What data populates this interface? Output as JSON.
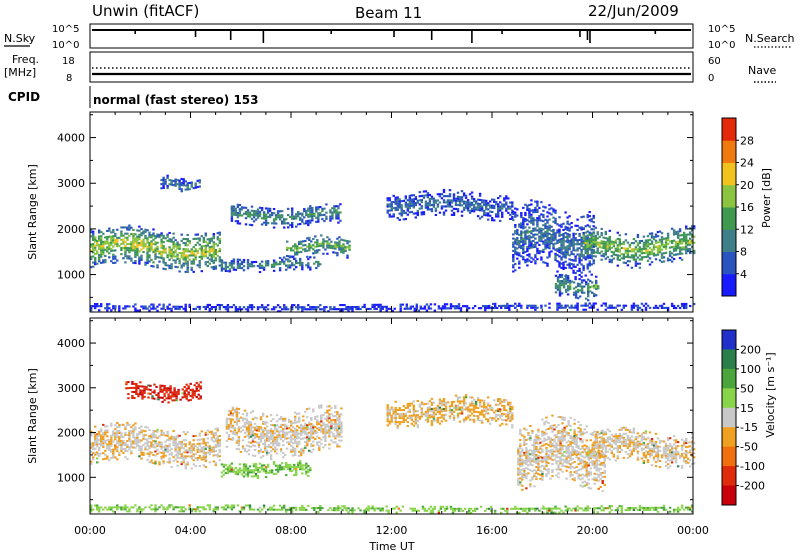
{
  "header": {
    "station": "Unwin (fitACF)",
    "beam": "Beam 11",
    "date": "22/Jun/2009"
  },
  "strips": {
    "nsky_label": "N.Sky",
    "nsky_ticks": [
      "10^5",
      "10^0"
    ],
    "nsearch_label": "N.Search",
    "nsearch_ticks": [
      "10^5",
      "10^0"
    ],
    "freq_label": "Freq.",
    "freq_unit": "[MHz]",
    "freq_ticks": [
      "18",
      "8"
    ],
    "nave_label": "Nave",
    "nave_ticks": [
      "60",
      "0"
    ],
    "cpid_label": "CPID",
    "cpid_text": "normal (fast stereo) 153"
  },
  "chart_data": [
    {
      "type": "heatmap",
      "name": "power",
      "ylabel": "Slant Range [km]",
      "xlabel": "Time UT",
      "x_ticks": [
        "00:00",
        "04:00",
        "08:00",
        "12:00",
        "16:00",
        "20:00",
        "00:00"
      ],
      "xlim_hours": [
        0,
        24
      ],
      "y_ticks": [
        1000,
        2000,
        3000,
        4000
      ],
      "ylim": [
        180,
        4560
      ],
      "colorbar": {
        "label": "Power [dB]",
        "ticks": [
          4,
          8,
          12,
          16,
          20,
          24,
          28
        ],
        "range": [
          0,
          32
        ],
        "colors": [
          "#1a1aff",
          "#2a55c0",
          "#3f7f8a",
          "#3f9a50",
          "#8ac440",
          "#f2c21f",
          "#f07a10",
          "#e52a0c"
        ]
      },
      "regions": [
        {
          "t0": 0.0,
          "t1": 5.2,
          "r_mid": 1560,
          "r_half": 420,
          "level": 20
        },
        {
          "t0": 2.8,
          "t1": 4.4,
          "r_mid": 2950,
          "r_half": 160,
          "level": 10
        },
        {
          "t0": 5.6,
          "t1": 10.0,
          "r_mid": 2280,
          "r_half": 220,
          "level": 12
        },
        {
          "t0": 5.2,
          "t1": 9.2,
          "r_mid": 1200,
          "r_half": 140,
          "level": 12
        },
        {
          "t0": 7.8,
          "t1": 10.3,
          "r_mid": 1600,
          "r_half": 220,
          "level": 16
        },
        {
          "t0": 11.8,
          "t1": 16.8,
          "r_mid": 2500,
          "r_half": 280,
          "level": 8
        },
        {
          "t0": 16.8,
          "t1": 20.0,
          "r_mid": 1750,
          "r_half": 700,
          "level": 9
        },
        {
          "t0": 18.5,
          "t1": 20.2,
          "r_mid": 700,
          "r_half": 240,
          "level": 14
        },
        {
          "t0": 19.6,
          "t1": 24.0,
          "r_mid": 1600,
          "r_half": 380,
          "level": 18
        },
        {
          "t0": 0.0,
          "t1": 24.0,
          "r_mid": 260,
          "r_half": 70,
          "level": 5
        }
      ]
    },
    {
      "type": "heatmap",
      "name": "velocity",
      "ylabel": "Slant Range [km]",
      "xlabel": "Time UT",
      "x_ticks": [
        "00:00",
        "04:00",
        "08:00",
        "12:00",
        "16:00",
        "20:00",
        "00:00"
      ],
      "xlim_hours": [
        0,
        24
      ],
      "y_ticks": [
        1000,
        2000,
        3000,
        4000
      ],
      "ylim": [
        180,
        4560
      ],
      "colorbar": {
        "label": "Velocity [m s⁻¹]",
        "ticks": [
          200,
          100,
          50,
          15,
          -15,
          -50,
          -100,
          -200
        ],
        "colors": [
          "#2030c8",
          "#2a7f4a",
          "#4aa63c",
          "#88d44a",
          "#c8c8c8",
          "#f0a020",
          "#f07010",
          "#e02a0c",
          "#c8000a"
        ]
      },
      "regions": [
        {
          "t0": 0.0,
          "t1": 5.2,
          "r_mid": 1700,
          "r_half": 420,
          "level": -10
        },
        {
          "t0": 1.4,
          "t1": 4.4,
          "r_mid": 2900,
          "r_half": 200,
          "level": -190
        },
        {
          "t0": 5.4,
          "t1": 10.0,
          "r_mid": 2000,
          "r_half": 500,
          "level": -5
        },
        {
          "t0": 5.2,
          "t1": 8.8,
          "r_mid": 1150,
          "r_half": 160,
          "level": 40
        },
        {
          "t0": 11.8,
          "t1": 16.8,
          "r_mid": 2450,
          "r_half": 300,
          "level": -20
        },
        {
          "t0": 17.0,
          "t1": 20.5,
          "r_mid": 1500,
          "r_half": 700,
          "level": -5
        },
        {
          "t0": 20.0,
          "t1": 24.0,
          "r_mid": 1650,
          "r_half": 380,
          "level": -10
        },
        {
          "t0": 0.0,
          "t1": 24.0,
          "r_mid": 270,
          "r_half": 70,
          "level": 40
        }
      ]
    }
  ]
}
